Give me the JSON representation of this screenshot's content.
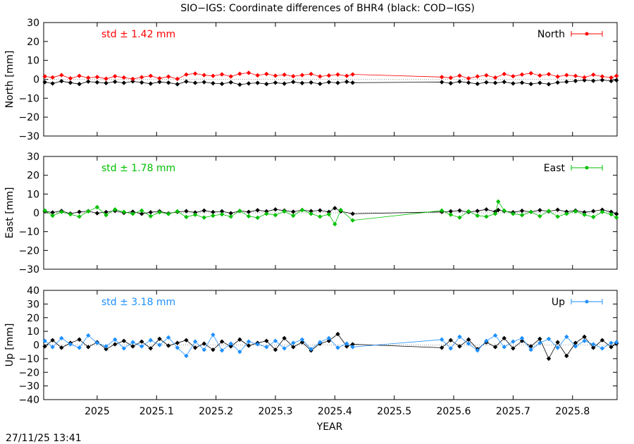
{
  "title": "SIO−IGS: Coordinate differences of BHR4 (black: COD−IGS)",
  "timestamp": "27/11/25 13:41",
  "xlabel": "YEAR",
  "colors": {
    "north": "#ff0000",
    "east": "#00c000",
    "up": "#1e90ff",
    "ref": "#000000"
  },
  "chart_data": [
    {
      "type": "line",
      "panel": "north",
      "ylabel": "North [mm]",
      "ylim": [
        -30,
        30
      ],
      "yticks": [
        30,
        20,
        10,
        0,
        -10,
        -20,
        -30
      ],
      "ytick_labels": [
        "30",
        "20",
        "10",
        "0",
        "−10",
        "−20",
        "−30"
      ],
      "xlim": [
        2024.91,
        2025.875
      ],
      "xticks": [
        2025,
        2025.1,
        2025.2,
        2025.3,
        2025.4,
        2025.5,
        2025.6,
        2025.7,
        2025.8
      ],
      "xtick_labels": [
        "2025",
        "2025.1",
        "2025.2",
        "2025.3",
        "2025.4",
        "2025.5",
        "2025.6",
        "2025.7",
        "2025.8"
      ],
      "std_text": "std ± 1.42 mm",
      "legend": "North",
      "series": [
        {
          "name": "SIO−IGS",
          "color": "#ff0000",
          "x": [
            2024.912,
            2024.925,
            2024.94,
            2024.955,
            2024.97,
            2024.985,
            2025.0,
            2025.015,
            2025.03,
            2025.045,
            2025.06,
            2025.075,
            2025.09,
            2025.105,
            2025.12,
            2025.135,
            2025.15,
            2025.165,
            2025.18,
            2025.195,
            2025.21,
            2025.225,
            2025.24,
            2025.255,
            2025.27,
            2025.285,
            2025.3,
            2025.315,
            2025.33,
            2025.345,
            2025.36,
            2025.375,
            2025.39,
            2025.405,
            2025.42,
            2025.43,
            2025.58,
            2025.595,
            2025.61,
            2025.625,
            2025.64,
            2025.655,
            2025.67,
            2025.685,
            2025.7,
            2025.715,
            2025.73,
            2025.745,
            2025.76,
            2025.775,
            2025.79,
            2025.805,
            2025.82,
            2025.835,
            2025.85,
            2025.865,
            2025.874
          ],
          "y": [
            1.5,
            1.0,
            2.2,
            0.5,
            1.8,
            0.8,
            1.2,
            0.3,
            1.6,
            0.9,
            0.2,
            1.1,
            1.8,
            0.5,
            1.4,
            0.2,
            2.5,
            3.0,
            2.2,
            1.8,
            2.6,
            1.5,
            2.9,
            3.4,
            2.1,
            2.8,
            1.9,
            2.4,
            1.6,
            2.2,
            2.8,
            1.5,
            2.0,
            2.5,
            1.8,
            2.6,
            1.2,
            0.8,
            1.9,
            0.5,
            1.5,
            2.1,
            0.9,
            2.8,
            1.6,
            2.5,
            3.2,
            2.0,
            2.7,
            1.4,
            2.2,
            1.8,
            1.0,
            2.4,
            1.5,
            0.9,
            1.8
          ]
        },
        {
          "name": "COD−IGS",
          "color": "#000000",
          "x": [
            2024.912,
            2024.925,
            2024.94,
            2024.955,
            2024.97,
            2024.985,
            2025.0,
            2025.015,
            2025.03,
            2025.045,
            2025.06,
            2025.075,
            2025.09,
            2025.105,
            2025.12,
            2025.135,
            2025.15,
            2025.165,
            2025.18,
            2025.195,
            2025.21,
            2025.225,
            2025.24,
            2025.255,
            2025.27,
            2025.285,
            2025.3,
            2025.315,
            2025.33,
            2025.345,
            2025.36,
            2025.375,
            2025.39,
            2025.405,
            2025.42,
            2025.43,
            2025.58,
            2025.595,
            2025.61,
            2025.625,
            2025.64,
            2025.655,
            2025.67,
            2025.685,
            2025.7,
            2025.715,
            2025.73,
            2025.745,
            2025.76,
            2025.775,
            2025.79,
            2025.805,
            2025.82,
            2025.835,
            2025.85,
            2025.865,
            2025.874
          ],
          "y": [
            -1.5,
            -2.2,
            -1.0,
            -1.8,
            -2.5,
            -1.2,
            -1.6,
            -2.0,
            -1.3,
            -1.9,
            -1.1,
            -1.7,
            -2.3,
            -1.4,
            -1.8,
            -2.6,
            -1.2,
            -1.9,
            -1.5,
            -2.1,
            -2.4,
            -1.6,
            -2.8,
            -2.2,
            -1.9,
            -2.5,
            -1.8,
            -2.3,
            -1.4,
            -2.0,
            -1.7,
            -2.4,
            -1.5,
            -1.9,
            -1.3,
            -1.8,
            -1.5,
            -2.1,
            -1.2,
            -1.8,
            -2.4,
            -1.6,
            -1.9,
            -1.4,
            -2.2,
            -1.8,
            -2.5,
            -1.9,
            -2.6,
            -1.7,
            -1.3,
            -0.9,
            -0.5,
            -0.8,
            -0.4,
            -0.9,
            -0.5
          ]
        }
      ]
    },
    {
      "type": "line",
      "panel": "east",
      "ylabel": "East [mm]",
      "ylim": [
        -30,
        30
      ],
      "yticks": [
        30,
        20,
        10,
        0,
        -10,
        -20,
        -30
      ],
      "ytick_labels": [
        "30",
        "20",
        "10",
        "0",
        "−10",
        "−20",
        "−30"
      ],
      "xlim": [
        2024.91,
        2025.875
      ],
      "xticks": [
        2025,
        2025.1,
        2025.2,
        2025.3,
        2025.4,
        2025.5,
        2025.6,
        2025.7,
        2025.8
      ],
      "xtick_labels": [
        "2025",
        "2025.1",
        "2025.2",
        "2025.3",
        "2025.4",
        "2025.5",
        "2025.6",
        "2025.7",
        "2025.8"
      ],
      "std_text": "std ± 1.78 mm",
      "legend": "East",
      "series": [
        {
          "name": "SIO−IGS",
          "color": "#00c000",
          "x": [
            2024.912,
            2024.925,
            2024.94,
            2024.955,
            2024.97,
            2024.985,
            2025.0,
            2025.015,
            2025.03,
            2025.045,
            2025.06,
            2025.075,
            2025.09,
            2025.105,
            2025.12,
            2025.135,
            2025.15,
            2025.165,
            2025.18,
            2025.195,
            2025.21,
            2025.225,
            2025.24,
            2025.255,
            2025.27,
            2025.285,
            2025.3,
            2025.315,
            2025.33,
            2025.345,
            2025.36,
            2025.375,
            2025.39,
            2025.4,
            2025.41,
            2025.43,
            2025.58,
            2025.595,
            2025.61,
            2025.625,
            2025.64,
            2025.655,
            2025.67,
            2025.675,
            2025.685,
            2025.7,
            2025.715,
            2025.73,
            2025.745,
            2025.76,
            2025.775,
            2025.79,
            2025.805,
            2025.82,
            2025.835,
            2025.85,
            2025.865,
            2025.874
          ],
          "y": [
            1.2,
            -1.5,
            0.5,
            -0.8,
            -2.0,
            0.8,
            3.0,
            -1.2,
            1.8,
            0.5,
            -0.5,
            1.2,
            -1.8,
            0.3,
            -0.6,
            0.8,
            -2.2,
            -1.0,
            -2.5,
            -1.5,
            -0.8,
            -2.0,
            1.0,
            -1.8,
            -2.6,
            -0.5,
            -1.2,
            0.8,
            -1.5,
            1.5,
            -0.5,
            -2.0,
            -0.8,
            -6.0,
            1.5,
            -4.0,
            1.2,
            -1.0,
            -2.5,
            0.8,
            -1.5,
            -2.0,
            -0.5,
            6.0,
            1.2,
            -0.5,
            -1.2,
            0.5,
            -1.8,
            1.0,
            -2.0,
            -0.5,
            0.8,
            -1.0,
            -2.2,
            0.5,
            -0.8,
            -2.5
          ]
        },
        {
          "name": "COD−IGS",
          "color": "#000000",
          "x": [
            2024.912,
            2024.925,
            2024.94,
            2024.955,
            2024.97,
            2024.985,
            2025.0,
            2025.015,
            2025.03,
            2025.045,
            2025.06,
            2025.075,
            2025.09,
            2025.105,
            2025.12,
            2025.135,
            2025.15,
            2025.165,
            2025.18,
            2025.195,
            2025.21,
            2025.225,
            2025.24,
            2025.255,
            2025.27,
            2025.285,
            2025.3,
            2025.315,
            2025.33,
            2025.345,
            2025.36,
            2025.375,
            2025.39,
            2025.4,
            2025.41,
            2025.43,
            2025.58,
            2025.595,
            2025.61,
            2025.625,
            2025.64,
            2025.655,
            2025.67,
            2025.675,
            2025.685,
            2025.7,
            2025.715,
            2025.73,
            2025.745,
            2025.76,
            2025.775,
            2025.79,
            2025.805,
            2025.82,
            2025.835,
            2025.85,
            2025.865,
            2025.874
          ],
          "y": [
            0.8,
            0.2,
            1.0,
            -0.4,
            0.5,
            0.9,
            -0.2,
            0.4,
            1.1,
            0.0,
            0.6,
            -0.5,
            0.3,
            0.8,
            -0.3,
            0.5,
            0.9,
            0.2,
            1.2,
            0.4,
            0.8,
            -0.2,
            1.0,
            0.5,
            1.4,
            0.8,
            1.8,
            1.2,
            0.6,
            1.5,
            0.9,
            1.3,
            0.5,
            2.5,
            0.8,
            -0.5,
            0.5,
            0.8,
            1.2,
            0.4,
            1.0,
            1.8,
            0.6,
            1.5,
            0.9,
            0.3,
            1.1,
            0.5,
            1.4,
            0.8,
            1.6,
            0.6,
            1.2,
            0.3,
            0.9,
            1.6,
            0.5,
            -0.6
          ]
        }
      ]
    },
    {
      "type": "line",
      "panel": "up",
      "ylabel": "Up [mm]",
      "ylim": [
        -40,
        40
      ],
      "yticks": [
        40,
        30,
        20,
        10,
        0,
        -10,
        -20,
        -30,
        -40
      ],
      "ytick_labels": [
        "40",
        "30",
        "20",
        "10",
        "0",
        "−10",
        "−20",
        "−30",
        "−40"
      ],
      "xlim": [
        2024.91,
        2025.875
      ],
      "xticks": [
        2025,
        2025.1,
        2025.2,
        2025.3,
        2025.4,
        2025.5,
        2025.6,
        2025.7,
        2025.8
      ],
      "xtick_labels": [
        "2025",
        "2025.1",
        "2025.2",
        "2025.3",
        "2025.4",
        "2025.5",
        "2025.6",
        "2025.7",
        "2025.8"
      ],
      "std_text": "std ± 3.18 mm",
      "legend": "Up",
      "series": [
        {
          "name": "SIO−IGS",
          "color": "#1e90ff",
          "x": [
            2024.912,
            2024.925,
            2024.94,
            2024.955,
            2024.97,
            2024.985,
            2025.0,
            2025.015,
            2025.03,
            2025.045,
            2025.06,
            2025.075,
            2025.09,
            2025.105,
            2025.12,
            2025.135,
            2025.15,
            2025.165,
            2025.18,
            2025.195,
            2025.21,
            2025.225,
            2025.24,
            2025.255,
            2025.27,
            2025.285,
            2025.3,
            2025.315,
            2025.33,
            2025.345,
            2025.36,
            2025.375,
            2025.39,
            2025.405,
            2025.42,
            2025.43,
            2025.58,
            2025.595,
            2025.61,
            2025.625,
            2025.64,
            2025.655,
            2025.67,
            2025.685,
            2025.7,
            2025.715,
            2025.73,
            2025.745,
            2025.76,
            2025.775,
            2025.79,
            2025.805,
            2025.82,
            2025.835,
            2025.85,
            2025.865,
            2025.874
          ],
          "y": [
            3.0,
            -1.5,
            5.0,
            0.5,
            -2.0,
            7.0,
            1.5,
            -1.0,
            4.0,
            -2.5,
            2.0,
            -1.0,
            3.5,
            0.0,
            5.5,
            -2.0,
            -8.0,
            2.5,
            -3.5,
            7.5,
            -4.0,
            1.0,
            -5.0,
            2.5,
            0.5,
            -1.5,
            3.0,
            -2.5,
            1.5,
            4.0,
            -3.0,
            2.0,
            5.0,
            -2.0,
            1.0,
            -1.5,
            4.0,
            -2.5,
            6.0,
            1.0,
            -4.0,
            3.0,
            7.0,
            -1.5,
            2.5,
            5.0,
            -3.5,
            1.5,
            4.5,
            -2.0,
            6.0,
            -1.0,
            3.0,
            0.5,
            -2.5,
            1.5,
            2.0
          ]
        },
        {
          "name": "COD−IGS",
          "color": "#000000",
          "x": [
            2024.912,
            2024.925,
            2024.94,
            2024.955,
            2024.97,
            2024.985,
            2025.0,
            2025.015,
            2025.03,
            2025.045,
            2025.06,
            2025.075,
            2025.09,
            2025.105,
            2025.12,
            2025.135,
            2025.15,
            2025.165,
            2025.18,
            2025.195,
            2025.21,
            2025.225,
            2025.24,
            2025.255,
            2025.27,
            2025.285,
            2025.3,
            2025.315,
            2025.33,
            2025.345,
            2025.36,
            2025.375,
            2025.39,
            2025.405,
            2025.42,
            2025.43,
            2025.58,
            2025.595,
            2025.61,
            2025.625,
            2025.64,
            2025.655,
            2025.67,
            2025.685,
            2025.7,
            2025.715,
            2025.73,
            2025.745,
            2025.76,
            2025.775,
            2025.79,
            2025.805,
            2025.82,
            2025.835,
            2025.85,
            2025.865,
            2025.874
          ],
          "y": [
            -1.0,
            3.5,
            -2.0,
            1.5,
            4.0,
            -1.5,
            2.0,
            -3.0,
            0.5,
            3.0,
            -1.0,
            2.5,
            -2.5,
            4.5,
            -0.5,
            1.5,
            3.5,
            -2.0,
            1.0,
            -3.5,
            2.5,
            -1.0,
            4.0,
            -0.5,
            1.5,
            3.0,
            -3.5,
            5.0,
            -1.5,
            2.0,
            -4.0,
            1.0,
            3.0,
            8.0,
            -1.0,
            0.5,
            -2.0,
            3.5,
            -1.0,
            4.0,
            -3.0,
            2.0,
            -1.5,
            5.0,
            -2.5,
            3.0,
            -1.0,
            4.5,
            -10.0,
            2.0,
            -8.0,
            1.5,
            6.0,
            -2.0,
            3.5,
            -1.5,
            1.0
          ]
        }
      ]
    }
  ]
}
